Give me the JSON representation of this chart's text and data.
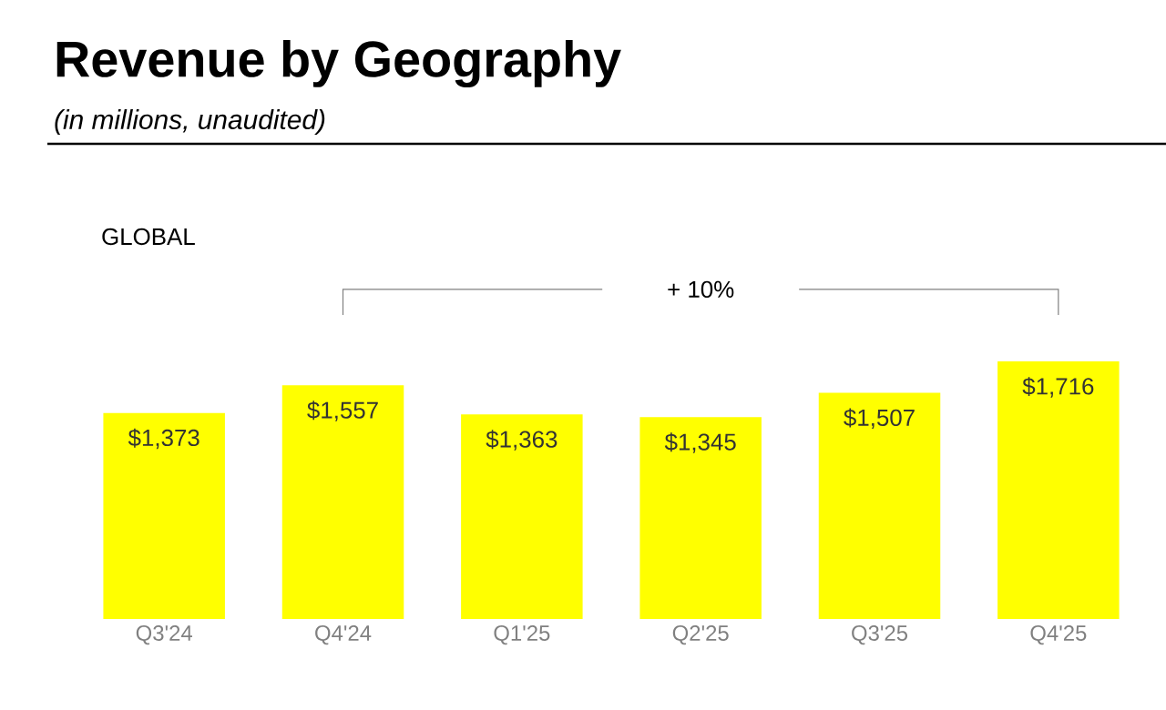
{
  "chart_data": {
    "type": "bar",
    "title": "Revenue by Geography",
    "subtitle": "(in millions, unaudited)",
    "annotations": [
      "GLOBAL",
      "+ 10%"
    ],
    "categories": [
      "Q3'24",
      "Q4'24",
      "Q1'25",
      "Q2'25",
      "Q3'25",
      "Q4'25"
    ],
    "values": [
      1373,
      1557,
      1363,
      1345,
      1507,
      1716
    ],
    "value_labels": [
      "$1,373",
      "$1,557",
      "$1,363",
      "$1,345",
      "$1,507",
      "$1,716"
    ],
    "color": "#ffff00"
  }
}
